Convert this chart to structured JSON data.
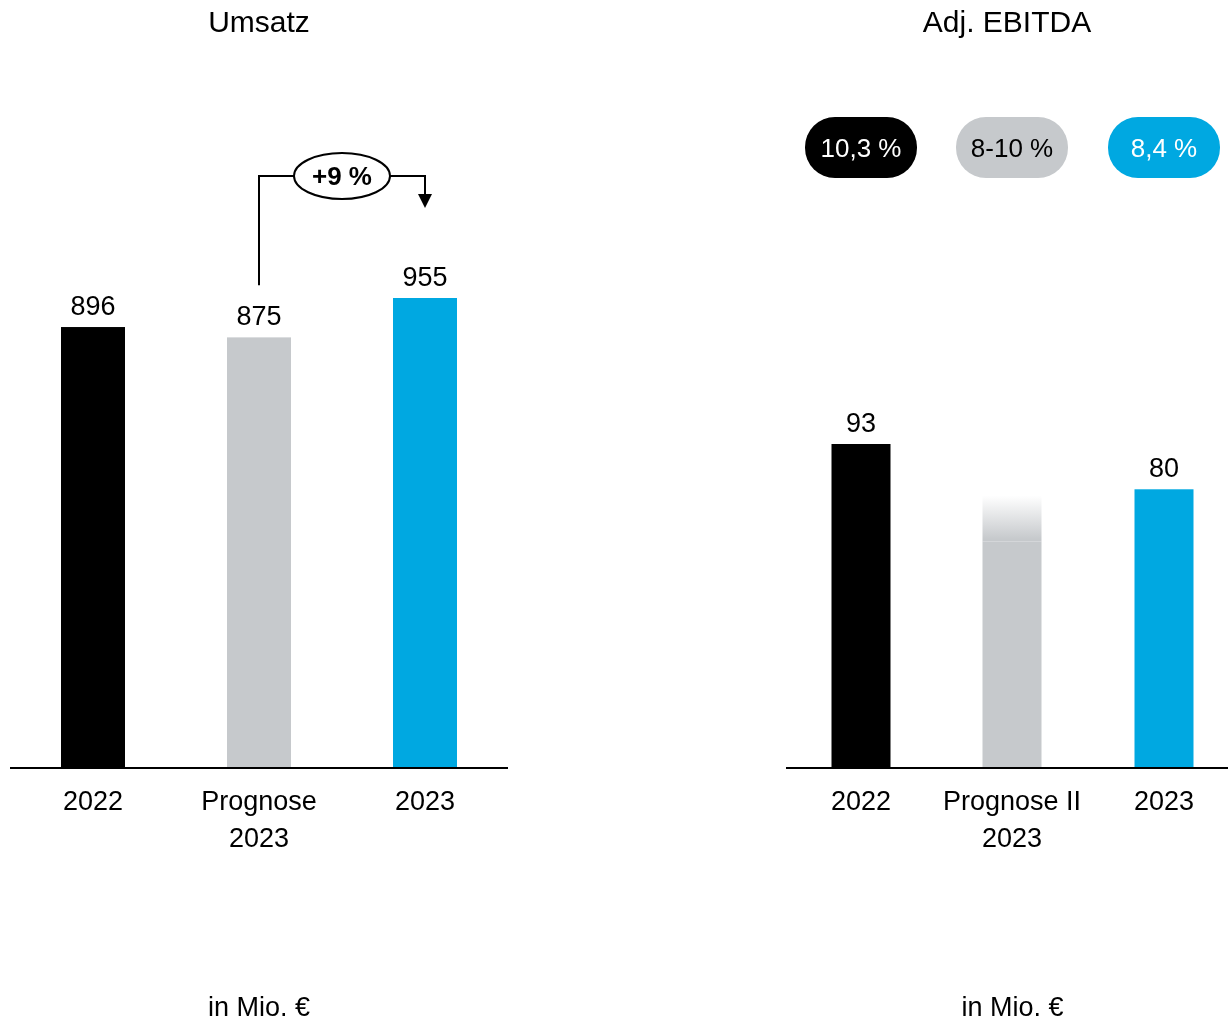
{
  "chart_data": [
    {
      "type": "bar",
      "title": "Umsatz",
      "xlabel": "in Mio. €",
      "categories": [
        "2022",
        "Prognose\n2023",
        "2023"
      ],
      "values": [
        896,
        875,
        955
      ],
      "colors": [
        "#000000",
        "#c6c9cc",
        "#00a8e1"
      ],
      "data_labels": true,
      "annotations": [
        "+9 %"
      ]
    },
    {
      "type": "bar",
      "title": "Adj. EBITDA",
      "xlabel": "in Mio. €",
      "categories": [
        "2022",
        "Prognose II\n2023",
        "2023"
      ],
      "values": [
        93,
        65,
        80
      ],
      "value_labels": [
        "93",
        null,
        "80"
      ],
      "colors": [
        "#000000",
        "#c6c9cc",
        "#00a8e1"
      ],
      "annotations": [
        "10,3 %",
        "8-10 %",
        "8,4 %"
      ]
    }
  ]
}
